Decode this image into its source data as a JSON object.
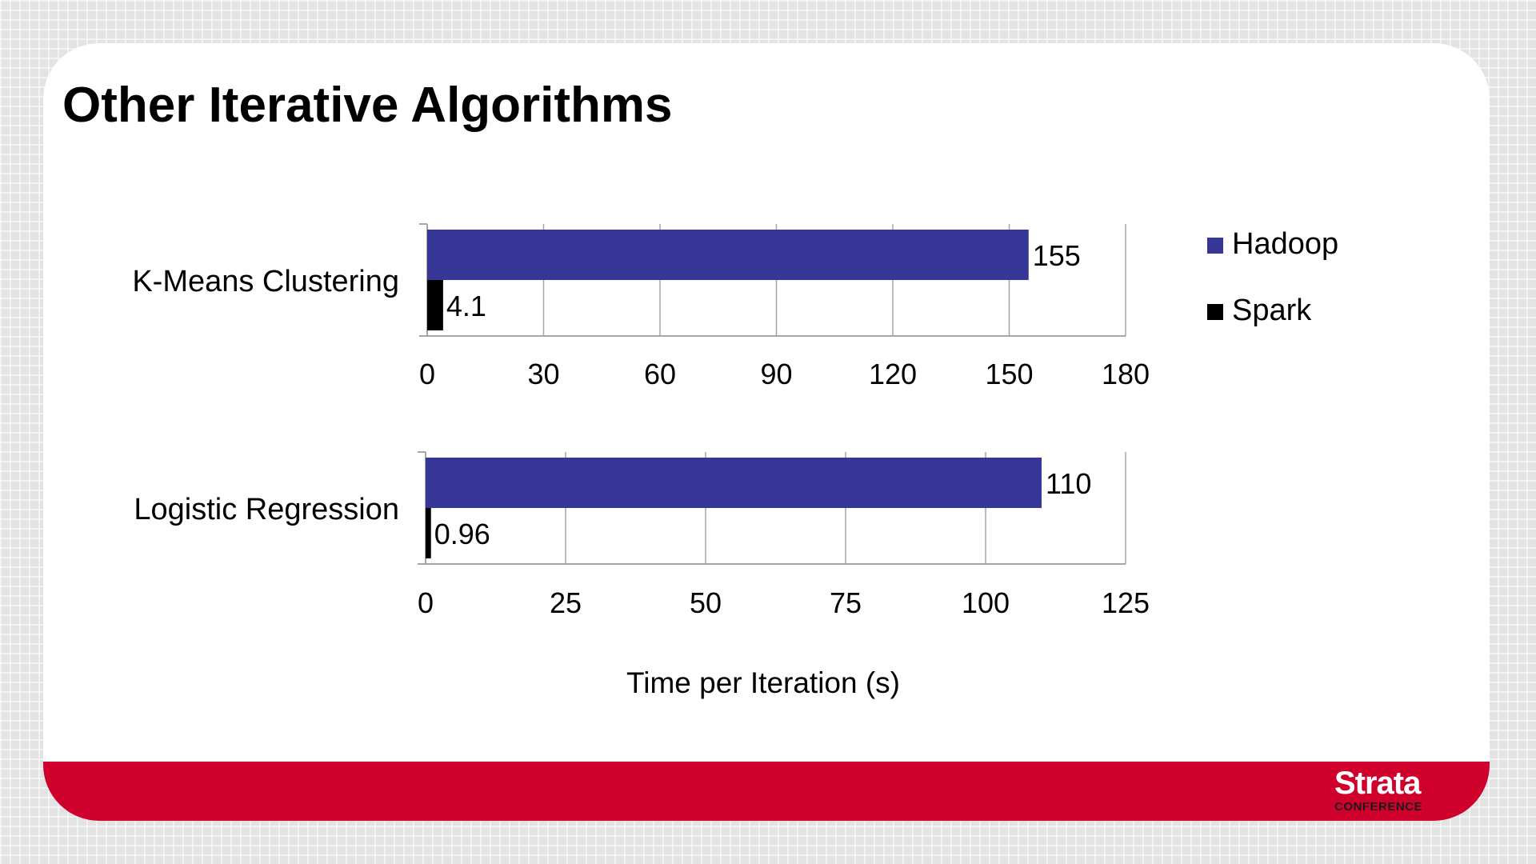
{
  "slide": {
    "title": "Other Iterative Algorithms"
  },
  "chart_data": [
    {
      "type": "bar",
      "orientation": "horizontal",
      "categories": [
        "K-Means Clustering"
      ],
      "series": [
        {
          "name": "Hadoop",
          "values": [
            155
          ]
        },
        {
          "name": "Spark",
          "values": [
            4.1
          ]
        }
      ],
      "data_labels": [
        "155",
        "4.1"
      ],
      "xlim": [
        0,
        180
      ],
      "xticks": [
        "0",
        "30",
        "60",
        "90",
        "120",
        "150",
        "180"
      ],
      "grid": "vertical",
      "legend": "right"
    },
    {
      "type": "bar",
      "orientation": "horizontal",
      "categories": [
        "Logistic Regression"
      ],
      "series": [
        {
          "name": "Hadoop",
          "values": [
            110
          ]
        },
        {
          "name": "Spark",
          "values": [
            0.96
          ]
        }
      ],
      "data_labels": [
        "110",
        "0.96"
      ],
      "xlim": [
        0,
        125
      ],
      "xticks": [
        "0",
        "25",
        "50",
        "75",
        "100",
        "125"
      ],
      "grid": "vertical",
      "xlabel": "Time per Iteration (s)"
    }
  ],
  "legend": {
    "items": [
      {
        "label": "Hadoop",
        "color": "#363696"
      },
      {
        "label": "Spark",
        "color": "#000000"
      }
    ]
  },
  "logo": {
    "main": "Strata",
    "sub": "CONFERENCE"
  },
  "colors": {
    "hadoop": "#363696",
    "spark": "#000000",
    "footer": "#d0002d",
    "grid": "#a6a6a6"
  }
}
